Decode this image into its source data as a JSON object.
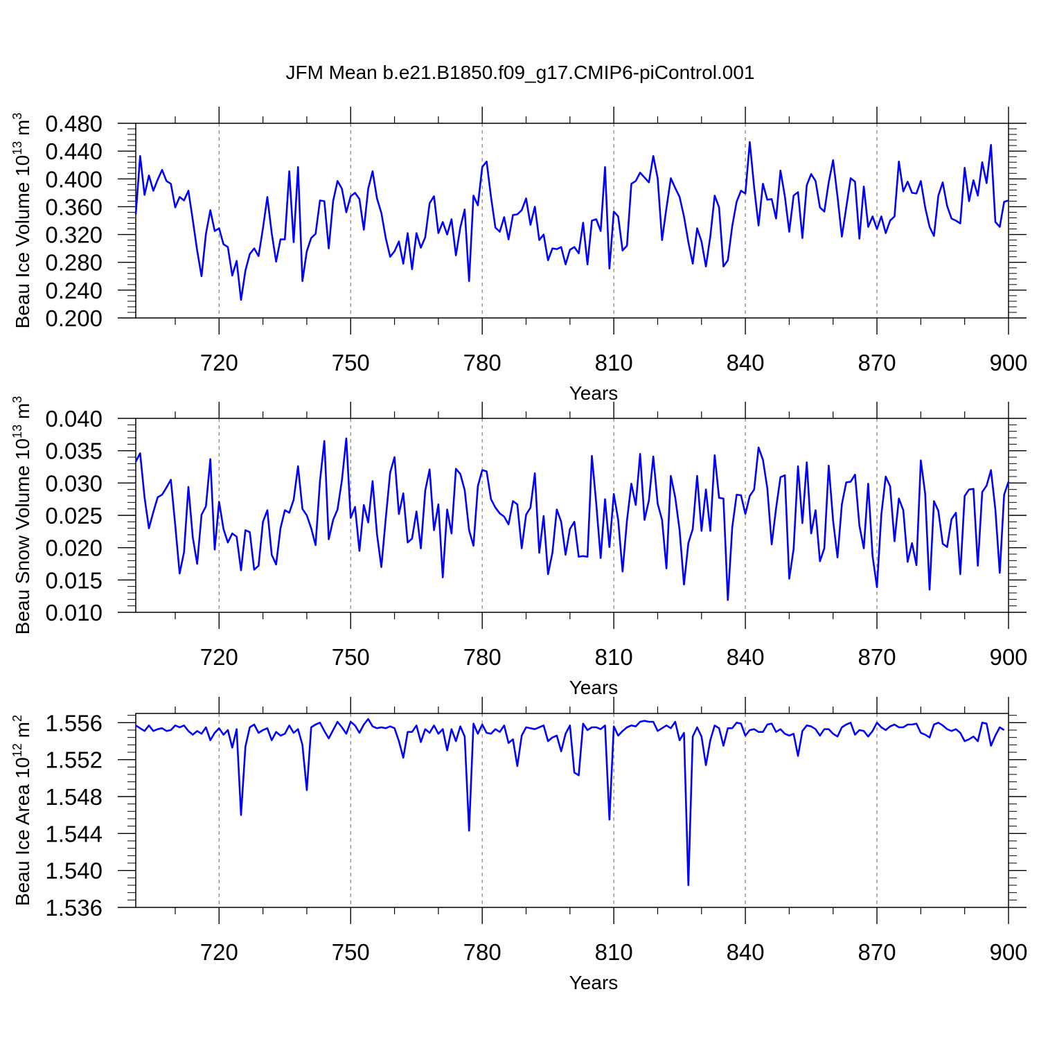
{
  "title": "JFM Mean b.e21.B1850.f09_g17.CMIP6-piControl.001",
  "colors": {
    "line": "#0000ff",
    "axis": "#000000",
    "grid": "#808080"
  },
  "chart_data": [
    {
      "type": "line",
      "ylabel_main": "Beau Ice Volume 10",
      "ylabel_exp": "13",
      "ylabel_unit": " m",
      "ylabel_unit_exp": "3",
      "xlabel": "Years",
      "xlim": [
        701,
        900
      ],
      "ylim": [
        0.2,
        0.48
      ],
      "x_ticks": [
        "720",
        "750",
        "780",
        "810",
        "840",
        "870",
        "900"
      ],
      "y_ticks": [
        "0.200",
        "0.240",
        "0.280",
        "0.320",
        "0.360",
        "0.400",
        "0.440",
        "0.480"
      ],
      "grid": "vertical dashed",
      "series": [
        {
          "name": "Beau Ice Volume",
          "values": [
            0.349,
            0.433,
            0.377,
            0.405,
            0.383,
            0.399,
            0.413,
            0.397,
            0.393,
            0.359,
            0.374,
            0.369,
            0.383,
            0.341,
            0.297,
            0.26,
            0.321,
            0.355,
            0.325,
            0.329,
            0.306,
            0.302,
            0.261,
            0.282,
            0.226,
            0.268,
            0.292,
            0.3,
            0.289,
            0.329,
            0.374,
            0.322,
            0.281,
            0.313,
            0.313,
            0.411,
            0.309,
            0.417,
            0.253,
            0.296,
            0.315,
            0.321,
            0.369,
            0.368,
            0.3,
            0.368,
            0.397,
            0.386,
            0.352,
            0.375,
            0.38,
            0.371,
            0.327,
            0.386,
            0.411,
            0.372,
            0.351,
            0.315,
            0.288,
            0.296,
            0.31,
            0.278,
            0.322,
            0.27,
            0.322,
            0.301,
            0.316,
            0.365,
            0.375,
            0.322,
            0.338,
            0.32,
            0.342,
            0.29,
            0.33,
            0.356,
            0.253,
            0.376,
            0.362,
            0.417,
            0.425,
            0.374,
            0.33,
            0.324,
            0.345,
            0.313,
            0.348,
            0.349,
            0.355,
            0.372,
            0.334,
            0.36,
            0.312,
            0.32,
            0.283,
            0.3,
            0.299,
            0.302,
            0.277,
            0.298,
            0.302,
            0.293,
            0.337,
            0.277,
            0.34,
            0.342,
            0.325,
            0.417,
            0.271,
            0.353,
            0.346,
            0.297,
            0.304,
            0.393,
            0.397,
            0.409,
            0.402,
            0.395,
            0.433,
            0.401,
            0.312,
            0.358,
            0.401,
            0.387,
            0.374,
            0.346,
            0.309,
            0.278,
            0.329,
            0.31,
            0.274,
            0.317,
            0.376,
            0.359,
            0.274,
            0.283,
            0.332,
            0.367,
            0.383,
            0.379,
            0.453,
            0.388,
            0.333,
            0.393,
            0.37,
            0.371,
            0.343,
            0.412,
            0.375,
            0.324,
            0.376,
            0.381,
            0.315,
            0.391,
            0.407,
            0.397,
            0.359,
            0.353,
            0.395,
            0.427,
            0.375,
            0.317,
            0.359,
            0.401,
            0.396,
            0.314,
            0.389,
            0.331,
            0.346,
            0.328,
            0.346,
            0.322,
            0.34,
            0.346,
            0.425,
            0.382,
            0.396,
            0.38,
            0.379,
            0.397,
            0.359,
            0.331,
            0.318,
            0.376,
            0.395,
            0.361,
            0.343,
            0.34,
            0.336,
            0.416,
            0.368,
            0.398,
            0.376,
            0.424,
            0.394,
            0.449,
            0.338,
            0.331,
            0.367,
            0.369
          ]
        }
      ]
    },
    {
      "type": "line",
      "ylabel_main": "Beau Snow Volume 10",
      "ylabel_exp": "13",
      "ylabel_unit": " m",
      "ylabel_unit_exp": "3",
      "xlabel": "Years",
      "xlim": [
        701,
        900
      ],
      "ylim": [
        0.01,
        0.04
      ],
      "x_ticks": [
        "720",
        "750",
        "780",
        "810",
        "840",
        "870",
        "900"
      ],
      "y_ticks": [
        "0.010",
        "0.015",
        "0.020",
        "0.025",
        "0.030",
        "0.035",
        "0.040"
      ],
      "grid": "vertical dashed",
      "series": [
        {
          "name": "Beau Snow Volume",
          "values": [
            0.0333,
            0.0346,
            0.0278,
            0.023,
            0.0255,
            0.0278,
            0.0282,
            0.0293,
            0.0305,
            0.0235,
            0.016,
            0.0193,
            0.0294,
            0.0216,
            0.0175,
            0.0251,
            0.0264,
            0.0337,
            0.0197,
            0.0271,
            0.0229,
            0.0208,
            0.0222,
            0.0217,
            0.0165,
            0.0227,
            0.0224,
            0.0166,
            0.0172,
            0.024,
            0.0258,
            0.0189,
            0.0174,
            0.023,
            0.0258,
            0.0254,
            0.0274,
            0.0326,
            0.026,
            0.025,
            0.023,
            0.0204,
            0.0303,
            0.0365,
            0.0213,
            0.0243,
            0.0259,
            0.0304,
            0.0369,
            0.0246,
            0.0263,
            0.0195,
            0.0266,
            0.0239,
            0.0303,
            0.0221,
            0.017,
            0.0245,
            0.0316,
            0.034,
            0.0252,
            0.0284,
            0.0208,
            0.0214,
            0.0256,
            0.0199,
            0.0288,
            0.0321,
            0.0227,
            0.0267,
            0.0154,
            0.0259,
            0.0222,
            0.0322,
            0.0314,
            0.0289,
            0.0227,
            0.0203,
            0.0295,
            0.032,
            0.0318,
            0.0275,
            0.0262,
            0.0253,
            0.0248,
            0.0236,
            0.0272,
            0.0267,
            0.0199,
            0.0251,
            0.0262,
            0.0315,
            0.0192,
            0.0249,
            0.0159,
            0.0192,
            0.0259,
            0.024,
            0.0189,
            0.0229,
            0.024,
            0.0186,
            0.0187,
            0.0186,
            0.0342,
            0.0268,
            0.0184,
            0.0275,
            0.0201,
            0.0283,
            0.0243,
            0.0163,
            0.0242,
            0.0299,
            0.0266,
            0.0345,
            0.0243,
            0.0273,
            0.0341,
            0.0268,
            0.0243,
            0.0168,
            0.0311,
            0.0278,
            0.0227,
            0.0143,
            0.0207,
            0.0229,
            0.0311,
            0.0226,
            0.029,
            0.0226,
            0.0343,
            0.0277,
            0.0276,
            0.0119,
            0.0231,
            0.0282,
            0.0281,
            0.0252,
            0.028,
            0.029,
            0.0355,
            0.0336,
            0.0292,
            0.0205,
            0.0261,
            0.0309,
            0.0312,
            0.0152,
            0.0198,
            0.0326,
            0.0238,
            0.0332,
            0.0222,
            0.0258,
            0.0179,
            0.0199,
            0.0327,
            0.0242,
            0.0185,
            0.0267,
            0.0301,
            0.0302,
            0.0313,
            0.0234,
            0.0199,
            0.0299,
            0.0187,
            0.0139,
            0.0251,
            0.031,
            0.0295,
            0.021,
            0.0276,
            0.0258,
            0.0178,
            0.0207,
            0.0173,
            0.0335,
            0.0283,
            0.0135,
            0.0272,
            0.0257,
            0.0206,
            0.0201,
            0.0244,
            0.0254,
            0.0159,
            0.028,
            0.029,
            0.0291,
            0.0172,
            0.0286,
            0.0296,
            0.032,
            0.0259,
            0.0161,
            0.0282,
            0.0302
          ]
        }
      ]
    },
    {
      "type": "line",
      "ylabel_main": "Beau Ice Area 10",
      "ylabel_exp": "12",
      "ylabel_unit": " m",
      "ylabel_unit_exp": "2",
      "xlabel": "Years",
      "xlim": [
        701,
        900
      ],
      "ylim": [
        1.536,
        1.557
      ],
      "x_ticks": [
        "720",
        "750",
        "780",
        "810",
        "840",
        "870",
        "900"
      ],
      "y_ticks": [
        "1.536",
        "1.540",
        "1.544",
        "1.548",
        "1.552",
        "1.556"
      ],
      "grid": "vertical dashed",
      "series": [
        {
          "name": "Beau Ice Area",
          "values": [
            1.5557,
            1.5554,
            1.5551,
            1.5557,
            1.5551,
            1.5553,
            1.5554,
            1.5551,
            1.5552,
            1.5557,
            1.5555,
            1.5557,
            1.5551,
            1.5547,
            1.5551,
            1.5548,
            1.5555,
            1.5541,
            1.5549,
            1.5554,
            1.5547,
            1.5552,
            1.5533,
            1.5553,
            1.546,
            1.5534,
            1.5555,
            1.5558,
            1.5549,
            1.5552,
            1.5554,
            1.5541,
            1.555,
            1.5546,
            1.5548,
            1.5557,
            1.5549,
            1.5553,
            1.5536,
            1.5487,
            1.5555,
            1.5558,
            1.556,
            1.5551,
            1.5543,
            1.5552,
            1.5561,
            1.5555,
            1.5548,
            1.5561,
            1.5557,
            1.5549,
            1.5558,
            1.5564,
            1.5556,
            1.5554,
            1.5555,
            1.5554,
            1.5556,
            1.5554,
            1.554,
            1.5522,
            1.555,
            1.555,
            1.5557,
            1.5539,
            1.5553,
            1.5549,
            1.5557,
            1.5548,
            1.5553,
            1.553,
            1.5553,
            1.554,
            1.5556,
            1.5545,
            1.5443,
            1.5559,
            1.5548,
            1.5558,
            1.5549,
            1.5548,
            1.5553,
            1.555,
            1.5557,
            1.5538,
            1.5542,
            1.5513,
            1.5546,
            1.5555,
            1.5554,
            1.5553,
            1.5555,
            1.5557,
            1.554,
            1.5544,
            1.5546,
            1.5529,
            1.5548,
            1.5557,
            1.5506,
            1.5503,
            1.5559,
            1.5552,
            1.5555,
            1.5555,
            1.5553,
            1.5557,
            1.5455,
            1.5556,
            1.5546,
            1.5551,
            1.5555,
            1.5557,
            1.5556,
            1.5561,
            1.5562,
            1.5561,
            1.5561,
            1.5551,
            1.5554,
            1.5557,
            1.5554,
            1.5561,
            1.5541,
            1.5549,
            1.5384,
            1.5545,
            1.5555,
            1.5545,
            1.5514,
            1.5541,
            1.5557,
            1.5554,
            1.5535,
            1.5554,
            1.5554,
            1.556,
            1.5559,
            1.5546,
            1.5552,
            1.5553,
            1.555,
            1.555,
            1.5558,
            1.5559,
            1.555,
            1.5553,
            1.5548,
            1.5546,
            1.5548,
            1.5524,
            1.5551,
            1.5557,
            1.5556,
            1.5553,
            1.5546,
            1.5553,
            1.5553,
            1.5548,
            1.5545,
            1.5555,
            1.5558,
            1.556,
            1.5547,
            1.5552,
            1.5551,
            1.5545,
            1.5551,
            1.556,
            1.5555,
            1.5552,
            1.5556,
            1.5558,
            1.5555,
            1.5555,
            1.5558,
            1.5558,
            1.5559,
            1.5549,
            1.5547,
            1.5544,
            1.5558,
            1.556,
            1.5557,
            1.5553,
            1.5551,
            1.5553,
            1.5549,
            1.554,
            1.5542,
            1.5545,
            1.554,
            1.556,
            1.5559,
            1.5535,
            1.5546,
            1.5555,
            1.5552
          ]
        }
      ]
    }
  ]
}
